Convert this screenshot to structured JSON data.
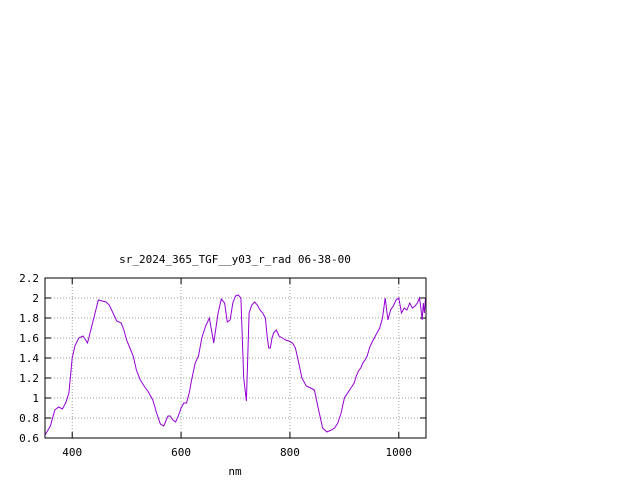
{
  "chart_data": {
    "type": "line",
    "title": "sr_2024_365_TGF__y03_r_rad 06-38-00",
    "xlabel": "nm",
    "ylabel": "",
    "xlim": [
      350,
      1050
    ],
    "ylim": [
      0.6,
      2.2
    ],
    "xticks": [
      400,
      600,
      800,
      1000
    ],
    "xtick_labels": [
      "400",
      "600",
      "800",
      "1000"
    ],
    "yticks": [
      0.6,
      0.8,
      1.0,
      1.2,
      1.4,
      1.6,
      1.8,
      2.0,
      2.2
    ],
    "ytick_labels": [
      "0.6",
      "0.8",
      "1",
      "1.2",
      "1.4",
      "1.6",
      "1.8",
      "2",
      "2.2"
    ],
    "grid": true,
    "line_color": "#9400d3",
    "series": [
      {
        "x": [
          350,
          360,
          368,
          375,
          382,
          388,
          394,
          400,
          405,
          412,
          420,
          428,
          435,
          442,
          448,
          455,
          462,
          468,
          475,
          482,
          490,
          495,
          500,
          506,
          512,
          518,
          525,
          532,
          540,
          548,
          555,
          562,
          568,
          572,
          576,
          580,
          585,
          590,
          595,
          600,
          605,
          610,
          615,
          620,
          626,
          632,
          638,
          645,
          652,
          660,
          668,
          674,
          680,
          685,
          690,
          695,
          700,
          705,
          710,
          715,
          720,
          725,
          730,
          735,
          740,
          745,
          750,
          755,
          758,
          761,
          764,
          767,
          770,
          775,
          780,
          786,
          792,
          798,
          805,
          810,
          815,
          822,
          830,
          838,
          845,
          852,
          860,
          868,
          876,
          882,
          888,
          894,
          900,
          906,
          912,
          918,
          922,
          926,
          930,
          934,
          938,
          942,
          946,
          950,
          955,
          960,
          965,
          970,
          975,
          980,
          985,
          990,
          995,
          1000,
          1005,
          1010,
          1015,
          1020,
          1025,
          1030,
          1034,
          1038,
          1041,
          1043,
          1045,
          1047,
          1049
        ],
        "y": [
          0.63,
          0.72,
          0.88,
          0.91,
          0.89,
          0.95,
          1.05,
          1.4,
          1.52,
          1.6,
          1.62,
          1.55,
          1.7,
          1.85,
          1.98,
          1.97,
          1.96,
          1.93,
          1.85,
          1.77,
          1.75,
          1.68,
          1.58,
          1.5,
          1.42,
          1.28,
          1.18,
          1.12,
          1.06,
          0.98,
          0.85,
          0.74,
          0.72,
          0.77,
          0.82,
          0.82,
          0.78,
          0.76,
          0.82,
          0.9,
          0.95,
          0.95,
          1.05,
          1.2,
          1.35,
          1.42,
          1.6,
          1.72,
          1.8,
          1.55,
          1.85,
          1.99,
          1.95,
          1.76,
          1.78,
          1.95,
          2.02,
          2.03,
          2.0,
          1.2,
          0.97,
          1.85,
          1.93,
          1.96,
          1.93,
          1.88,
          1.85,
          1.8,
          1.62,
          1.5,
          1.5,
          1.6,
          1.65,
          1.68,
          1.62,
          1.6,
          1.58,
          1.57,
          1.55,
          1.5,
          1.38,
          1.2,
          1.12,
          1.1,
          1.08,
          0.9,
          0.7,
          0.66,
          0.68,
          0.7,
          0.75,
          0.85,
          1.0,
          1.05,
          1.1,
          1.15,
          1.22,
          1.27,
          1.3,
          1.35,
          1.38,
          1.42,
          1.5,
          1.55,
          1.6,
          1.65,
          1.7,
          1.8,
          2.0,
          1.78,
          1.88,
          1.92,
          1.98,
          2.0,
          1.85,
          1.9,
          1.88,
          1.95,
          1.9,
          1.92,
          1.95,
          2.0,
          1.88,
          1.78,
          1.95,
          1.85,
          2.0
        ],
        "y_note": ""
      }
    ]
  }
}
